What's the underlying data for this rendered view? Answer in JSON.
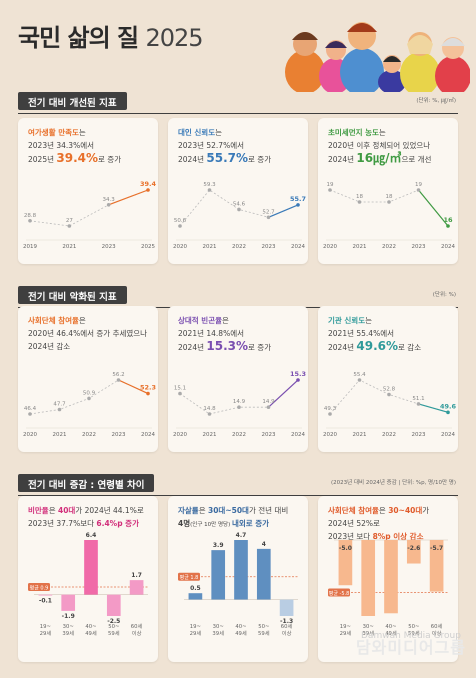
{
  "header": {
    "title": "국민 삶의 질",
    "year": "2025"
  },
  "colors": {
    "orange": "#e8702a",
    "blue": "#3a7ab8",
    "green": "#3f9a42",
    "purple": "#7a4fb0",
    "pink": "#d12e7a",
    "dark": "#3a6aa0",
    "orangeRed": "#e05a2a"
  },
  "sections": {
    "improved": {
      "title": "전기 대비 개선된 지표",
      "unit": "(단위: %, ㎍/㎥)"
    },
    "worsened": {
      "title": "전기 대비 악화된 지표",
      "unit": "(단위: %)"
    },
    "age": {
      "title": "전기 대비 증감 : 연령별 차이",
      "unit": "(2023년 대비 2024년 증감 | 단위: %p, 명/10만 명)"
    }
  },
  "cards": {
    "leisure": {
      "t1": "여가생활 만족도",
      "t1b": "는",
      "t2": "2023년 34.3%에서",
      "t3a": "2025년 ",
      "big": "39.4%",
      "t3b": "로 증가"
    },
    "trust": {
      "t1": "대인 신뢰도",
      "t1b": "는",
      "t2": "2023년 52.7%에서",
      "t3a": "2024년 ",
      "big": "55.7%",
      "t3b": "로 증가"
    },
    "dust": {
      "t1": "초미세먼지 농도",
      "t1b": "는",
      "t2": "2020년 이후 정체되어 있었으나",
      "t3a": "2024년 ",
      "big": "16㎍/㎥",
      "t3b": "으로 개선"
    },
    "social": {
      "t1": "사회단체 참여율",
      "t1b": "은",
      "t2": "2020년 46.4%에서 증가 추세였으나",
      "t3a": "2024년 감소",
      "big": "",
      "t3b": ""
    },
    "isolation": {
      "t1": "상대적 빈곤율",
      "t1b": "은",
      "t2": "2021년 14.8%에서",
      "t3a": "2024년 ",
      "big": "15.3%",
      "t3b": "로 증가"
    },
    "institution": {
      "t1": "기관 신뢰도",
      "t1b": "는",
      "t2": "2021년 55.4%에서",
      "t3a": "2024년 ",
      "big": "49.6%",
      "t3b": "로 감소"
    },
    "gloom": {
      "t1a": "비만율",
      "t1b": "은 ",
      "t1c": "40대",
      "t1d": "가 2024년 44.1%로",
      "t2a": "2023년 37.7%보다 ",
      "big": "6.4%p 증가"
    },
    "suicide": {
      "t1a": "자살률",
      "t1b": "은 ",
      "t1c": "30대~50대",
      "t1d": "가 전년 대비",
      "t2a": "4명",
      "t2b": "(인구 10만 명당) ",
      "t2c": "내외로 증가"
    },
    "volunteer": {
      "t1a": "사회단체 참여율",
      "t1b": "은 ",
      "t1c": "30~40대",
      "t1d": "가",
      "t2": "2024년 52%로",
      "t3a": "2023년 보다 ",
      "big": "8%p 이상 감소"
    }
  },
  "chart_data": [
    {
      "type": "line",
      "name": "leisure",
      "x": [
        "2019",
        "2021",
        "2023",
        "2025"
      ],
      "values": [
        28.8,
        27.0,
        34.3,
        39.4
      ]
    },
    {
      "type": "line",
      "name": "trust",
      "x": [
        "2020",
        "2021",
        "2022",
        "2023",
        "2024"
      ],
      "values": [
        50.6,
        59.3,
        54.6,
        52.7,
        55.7
      ]
    },
    {
      "type": "line",
      "name": "dust",
      "x": [
        "2020",
        "2021",
        "2022",
        "2023",
        "2024"
      ],
      "values": [
        19,
        18,
        18,
        19,
        16
      ]
    },
    {
      "type": "line",
      "name": "social",
      "x": [
        "2020",
        "2021",
        "2022",
        "2023",
        "2024"
      ],
      "values": [
        46.4,
        47.7,
        50.9,
        56.2,
        52.3
      ]
    },
    {
      "type": "line",
      "name": "isolation",
      "x": [
        "2020",
        "2021",
        "2022",
        "2023",
        "2024"
      ],
      "values": [
        15.1,
        14.8,
        14.9,
        14.9,
        15.3
      ]
    },
    {
      "type": "line",
      "name": "institution",
      "x": [
        "2020",
        "2021",
        "2022",
        "2023",
        "2024"
      ],
      "values": [
        49.3,
        55.4,
        52.8,
        51.1,
        49.6
      ]
    },
    {
      "type": "bar",
      "name": "gloom",
      "categories": [
        "19~29세",
        "30~39세",
        "40~49세",
        "50~59세",
        "60세 이상"
      ],
      "values": [
        -0.1,
        -1.9,
        6.4,
        -2.5,
        1.7
      ],
      "average": 0.9,
      "average_label": "평균 0.9"
    },
    {
      "type": "bar",
      "name": "suicide",
      "categories": [
        "19~29세",
        "30~39세",
        "40~49세",
        "50~59세",
        "60세 이상"
      ],
      "values": [
        0.5,
        3.9,
        4.7,
        4.0,
        -1.3
      ],
      "average": 1.8,
      "average_label": "평균 1.8"
    },
    {
      "type": "bar",
      "name": "volunteer",
      "categories": [
        "19~29세",
        "30~39세",
        "40~49세",
        "50~59세",
        "60세 이상"
      ],
      "values": [
        -5.0,
        -8.4,
        -8.1,
        -2.6,
        -5.7
      ],
      "labels": [
        "-5.0",
        "",
        "",
        "-2.6",
        "-5.7"
      ],
      "average": -5.8,
      "average_label": "평균 -5.8"
    }
  ],
  "watermark": {
    "line1": "Damwah Media Group",
    "line2": "담와미디어그룹"
  }
}
